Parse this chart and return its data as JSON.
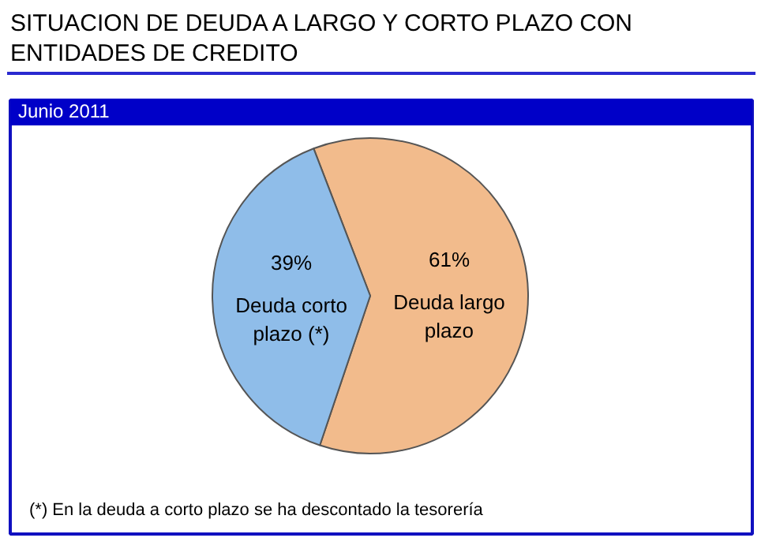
{
  "chart_data": {
    "type": "pie",
    "title": "SITUACION DE DEUDA A LARGO Y CORTO PLAZO CON\nENTIDADES DE CREDITO",
    "subtitle": "Junio 2011",
    "categories": [
      "Deuda largo plazo",
      "Deuda corto plazo (*)"
    ],
    "values": [
      61,
      39
    ],
    "colors": [
      "#f2bb8c",
      "#8fbde9"
    ],
    "value_labels": [
      "61%",
      "39%"
    ],
    "annotations": [
      "(*) En la deuda a corto plazo se ha descontado la tesorería"
    ],
    "legend": false
  }
}
